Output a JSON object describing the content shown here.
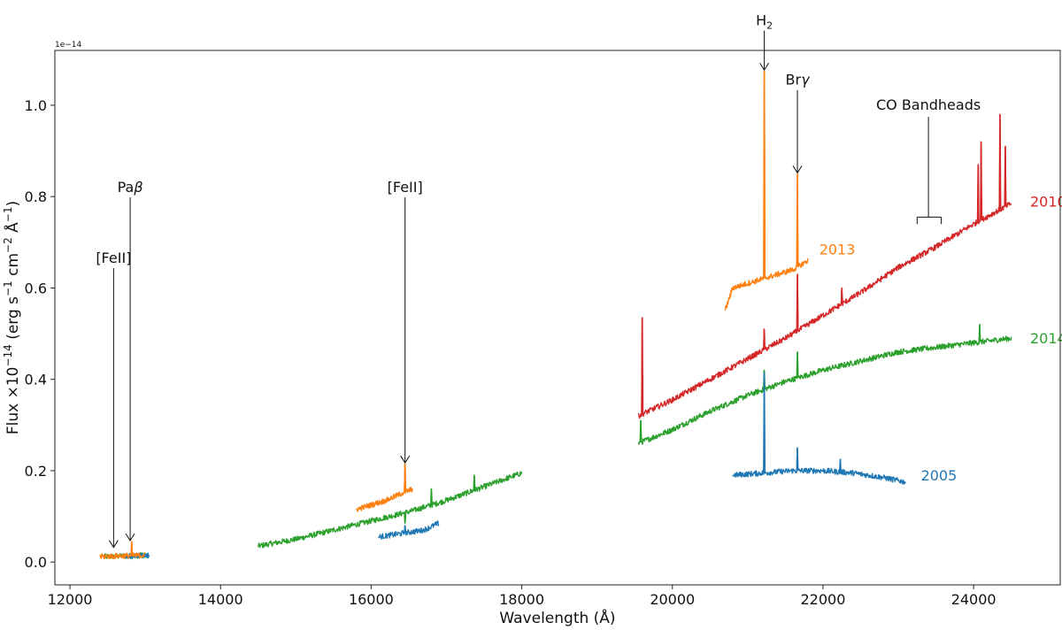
{
  "chart_data": {
    "type": "line",
    "title": "",
    "xlabel": "Wavelength (Å)",
    "ylabel_parts": {
      "prefix": "Flux ×10",
      "exp": "−14",
      "mid": " (erg s",
      "exp2": "−1",
      "mid2": " cm",
      "exp3": "−2",
      "mid3": " Å",
      "exp4": "−1",
      "suffix": ")"
    },
    "y_offset_text": "1e−14",
    "xlim": [
      11800,
      25150
    ],
    "ylim": [
      -0.05,
      1.12
    ],
    "xticks": [
      12000,
      14000,
      16000,
      18000,
      20000,
      22000,
      24000
    ],
    "xtick_labels": [
      "12000",
      "14000",
      "16000",
      "18000",
      "20000",
      "22000",
      "24000"
    ],
    "yticks": [
      0.0,
      0.2,
      0.4,
      0.6,
      0.8,
      1.0
    ],
    "ytick_labels": [
      "0.0",
      "0.2",
      "0.4",
      "0.6",
      "0.8",
      "1.0"
    ],
    "grid": false,
    "colors": {
      "2005": "#1f77b4",
      "2013": "#ff7f0e",
      "2014": "#2ca02c",
      "2010": "#d62728"
    },
    "series": [
      {
        "name": "2014",
        "color": "#2ca02c",
        "segments": [
          {
            "x": [
              12450,
              12700,
              12900,
              13000
            ],
            "y": [
              0.012,
              0.013,
              0.014,
              0.016
            ]
          },
          {
            "x": [
              14500,
              15000,
              15500,
              16000,
              16500,
              17000,
              17500,
              18000
            ],
            "y": [
              0.035,
              0.05,
              0.07,
              0.09,
              0.11,
              0.135,
              0.165,
              0.195
            ]
          },
          {
            "x": [
              19550,
              20000,
              20500,
              21000,
              21500,
              22000,
              22500,
              23000,
              23500,
              24000,
              24500
            ],
            "y": [
              0.26,
              0.29,
              0.33,
              0.365,
              0.395,
              0.42,
              0.44,
              0.46,
              0.47,
              0.48,
              0.49
            ]
          }
        ],
        "spikes": [
          {
            "x": 16450,
            "y": 0.085
          },
          {
            "x": 16800,
            "y": 0.16
          },
          {
            "x": 17370,
            "y": 0.19
          },
          {
            "x": 18020,
            "y": 0.22
          },
          {
            "x": 19580,
            "y": 0.31
          },
          {
            "x": 21220,
            "y": 0.42
          },
          {
            "x": 21660,
            "y": 0.46
          },
          {
            "x": 24080,
            "y": 0.52
          }
        ]
      },
      {
        "name": "2005",
        "color": "#1f77b4",
        "segments": [
          {
            "x": [
              12700,
              12900,
              13050
            ],
            "y": [
              0.012,
              0.014,
              0.015
            ]
          },
          {
            "x": [
              16100,
              16300,
              16500,
              16700,
              16900
            ],
            "y": [
              0.055,
              0.06,
              0.065,
              0.07,
              0.085
            ]
          },
          {
            "x": [
              20800,
              21200,
              21600,
              22000,
              22400,
              22800,
              23100
            ],
            "y": [
              0.19,
              0.195,
              0.2,
              0.2,
              0.195,
              0.185,
              0.175
            ]
          }
        ],
        "spikes": [
          {
            "x": 16450,
            "y": 0.08
          },
          {
            "x": 21220,
            "y": 0.415
          },
          {
            "x": 21660,
            "y": 0.25
          },
          {
            "x": 22230,
            "y": 0.225
          }
        ]
      },
      {
        "name": "2010",
        "color": "#d62728",
        "segments": [
          {
            "x": [
              19550,
              20000,
              20500,
              21000,
              21500,
              22000,
              22500,
              23000,
              23500,
              24000,
              24500
            ],
            "y": [
              0.32,
              0.355,
              0.4,
              0.445,
              0.49,
              0.54,
              0.59,
              0.645,
              0.69,
              0.74,
              0.785
            ]
          }
        ],
        "spikes": [
          {
            "x": 19600,
            "y": 0.535
          },
          {
            "x": 21220,
            "y": 0.51
          },
          {
            "x": 21660,
            "y": 0.63
          },
          {
            "x": 22250,
            "y": 0.6
          },
          {
            "x": 24060,
            "y": 0.87
          },
          {
            "x": 24100,
            "y": 0.92
          },
          {
            "x": 24350,
            "y": 0.98
          },
          {
            "x": 24420,
            "y": 0.91
          },
          {
            "x": 24520,
            "y": 0.94
          }
        ]
      },
      {
        "name": "2013",
        "color": "#ff7f0e",
        "segments": [
          {
            "x": [
              12400,
              12600,
              12800,
              13000
            ],
            "y": [
              0.012,
              0.013,
              0.014,
              0.015
            ]
          },
          {
            "x": [
              15800,
              16000,
              16200,
              16400,
              16550
            ],
            "y": [
              0.115,
              0.125,
              0.135,
              0.15,
              0.16
            ]
          },
          {
            "x": [
              20700,
              20800,
              21000,
              21200,
              21400,
              21600,
              21800
            ],
            "y": [
              0.55,
              0.6,
              0.61,
              0.62,
              0.63,
              0.64,
              0.66
            ]
          }
        ],
        "spikes": [
          {
            "x": 12820,
            "y": 0.045
          },
          {
            "x": 16450,
            "y": 0.215
          },
          {
            "x": 21220,
            "y": 1.075
          },
          {
            "x": 21660,
            "y": 0.85
          }
        ]
      }
    ],
    "series_labels": [
      {
        "text": "2010",
        "color": "#d62728",
        "x": 24750,
        "y": 0.79
      },
      {
        "text": "2013",
        "color": "#ff7f0e",
        "x": 21950,
        "y": 0.685
      },
      {
        "text": "2014",
        "color": "#2ca02c",
        "x": 24750,
        "y": 0.49
      },
      {
        "text": "2005",
        "color": "#1f77b4",
        "x": 23300,
        "y": 0.19
      }
    ],
    "annotations": [
      {
        "name": "annot-feii-1",
        "text": "[FeII]",
        "x": 12580,
        "y_text": 0.655,
        "y_tip": 0.03
      },
      {
        "name": "annot-pab",
        "text_main": "Pa",
        "text_greek": "β",
        "x": 12800,
        "y_text": 0.81,
        "y_tip": 0.045
      },
      {
        "name": "annot-feii-2",
        "text": "[FeII]",
        "x": 16450,
        "y_text": 0.81,
        "y_tip": 0.215
      },
      {
        "name": "annot-h2",
        "text_main": "H",
        "text_sub": "2",
        "x": 21220,
        "y_text": 1.175,
        "y_tip": 1.075
      },
      {
        "name": "annot-brg",
        "text_main": "Br",
        "text_greek": "γ",
        "x": 21660,
        "y_text": 1.045,
        "y_tip": 0.85
      }
    ],
    "bandhead": {
      "text": "CO Bandheads",
      "x_center": 23400,
      "x_left": 23250,
      "x_right": 23570,
      "y_top": 0.99,
      "y_bar": 0.755,
      "y_tick_bottom": 0.74
    }
  }
}
